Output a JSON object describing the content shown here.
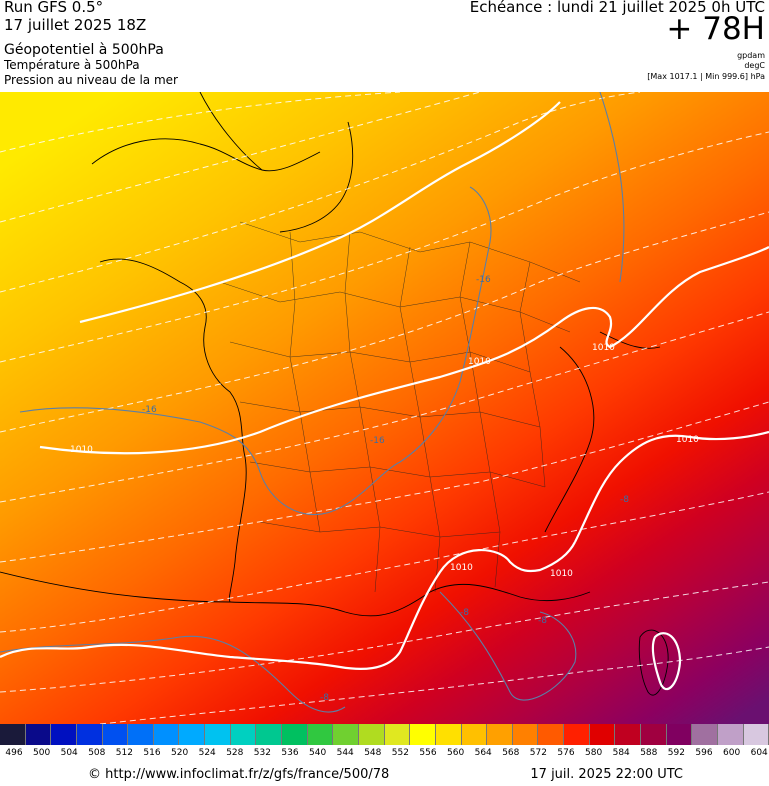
{
  "header": {
    "run": "Run GFS 0.5°",
    "run_date": "17 juillet 2025 18Z",
    "field_main": "Géopotentiel à 500hPa",
    "field_temp": "Température à 500hPa",
    "field_pressure": "Pression au niveau de la mer",
    "echeance": "Echéance : lundi 21 juillet 2025 0h UTC",
    "lead_time": "+ 78H",
    "unit_geo": "gpdam",
    "unit_temp": "degC",
    "pressure_range": "[Max 1017.1 | Min 999.6] hPa"
  },
  "map": {
    "isobar_labels": [
      "1010",
      "1010",
      "1010",
      "1010",
      "1010",
      "1010"
    ],
    "temp_labels": [
      "-16",
      "-16",
      "-16",
      "-8",
      "-8",
      "-8",
      "-8"
    ],
    "colors": {
      "isobar": "#ffffff",
      "isotherm": "#5b7fa6",
      "geo_high": "#6a0f5a",
      "geo_low": "#ffe600"
    }
  },
  "colorscale": {
    "labels": [
      "496",
      "500",
      "504",
      "508",
      "512",
      "516",
      "520",
      "524",
      "528",
      "532",
      "536",
      "540",
      "544",
      "548",
      "552",
      "556",
      "560",
      "564",
      "568",
      "572",
      "576",
      "580",
      "584",
      "588",
      "592",
      "596",
      "600",
      "604"
    ],
    "colors": [
      "#1a1a3a",
      "#0a0a8a",
      "#0010c0",
      "#0030e0",
      "#0050f0",
      "#0070f8",
      "#0090ff",
      "#00aaff",
      "#00c2f0",
      "#00d0c0",
      "#00c890",
      "#00c060",
      "#30c840",
      "#70d030",
      "#b0dc20",
      "#e0e820",
      "#ffff00",
      "#ffe000",
      "#ffc000",
      "#ffa000",
      "#ff8000",
      "#ff5a00",
      "#ff2000",
      "#e00000",
      "#c00020",
      "#a00040",
      "#800060",
      "#a070a0",
      "#c0a0c8",
      "#d8c8e0"
    ]
  },
  "footer": {
    "source": "© http://www.infoclimat.fr/z/gfs/france/500/78",
    "valid": "17 juil. 2025 22:00 UTC"
  }
}
